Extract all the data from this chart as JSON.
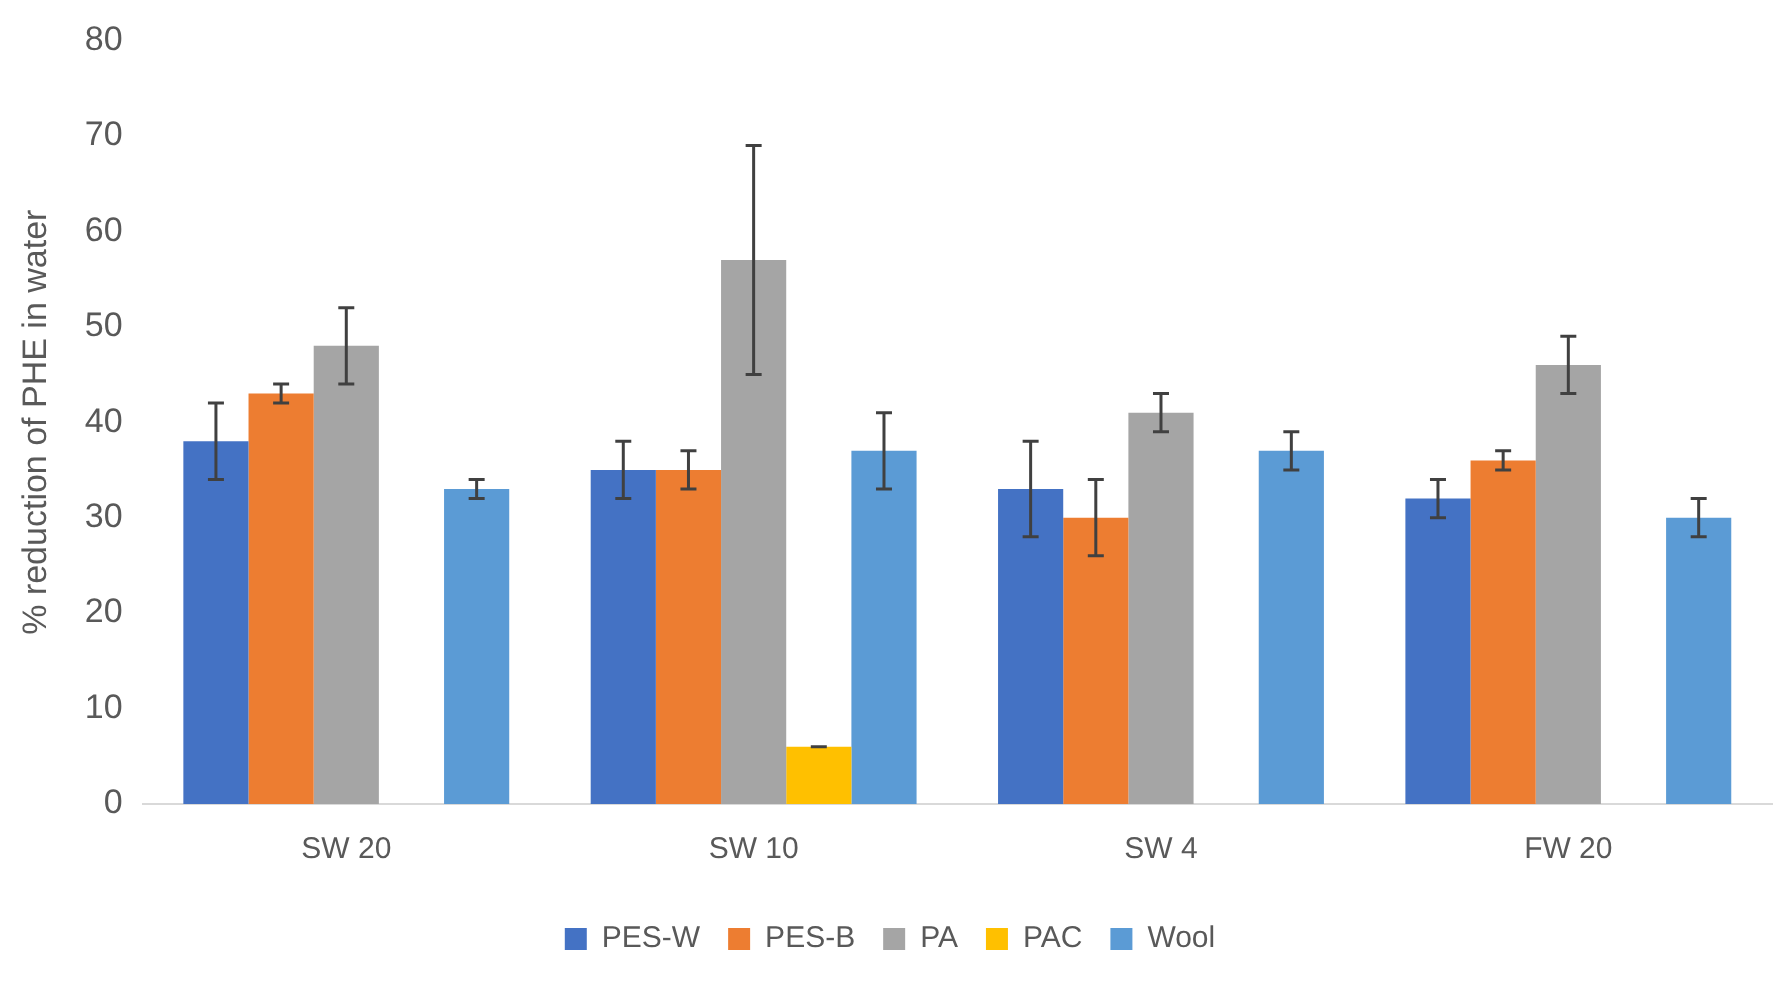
{
  "chart_data": {
    "type": "bar",
    "ylabel": "% reduction of PHE in water",
    "categories": [
      "SW 20",
      "SW 10",
      "SW 4",
      "FW 20"
    ],
    "series": [
      {
        "name": "PES-W",
        "color": "#4472c4",
        "values": [
          38,
          35,
          33,
          32
        ],
        "errors": [
          4,
          3,
          5,
          2
        ]
      },
      {
        "name": "PES-B",
        "color": "#ed7d31",
        "values": [
          43,
          35,
          30,
          36
        ],
        "errors": [
          1,
          2,
          4,
          1
        ]
      },
      {
        "name": "PA",
        "color": "#a5a5a5",
        "values": [
          48,
          57,
          41,
          46
        ],
        "errors": [
          4,
          12,
          2,
          3
        ]
      },
      {
        "name": "PAC",
        "color": "#ffc000",
        "values": [
          null,
          6,
          null,
          null
        ],
        "errors": [
          null,
          0,
          null,
          null
        ]
      },
      {
        "name": "Wool",
        "color": "#5b9bd5",
        "values": [
          33,
          37,
          37,
          30
        ],
        "errors": [
          1,
          4,
          2,
          2
        ]
      }
    ],
    "ylim": [
      0,
      80
    ],
    "yticks": [
      0,
      10,
      20,
      30,
      40,
      50,
      60,
      70,
      80
    ],
    "grid": false,
    "legend": "bottom"
  }
}
